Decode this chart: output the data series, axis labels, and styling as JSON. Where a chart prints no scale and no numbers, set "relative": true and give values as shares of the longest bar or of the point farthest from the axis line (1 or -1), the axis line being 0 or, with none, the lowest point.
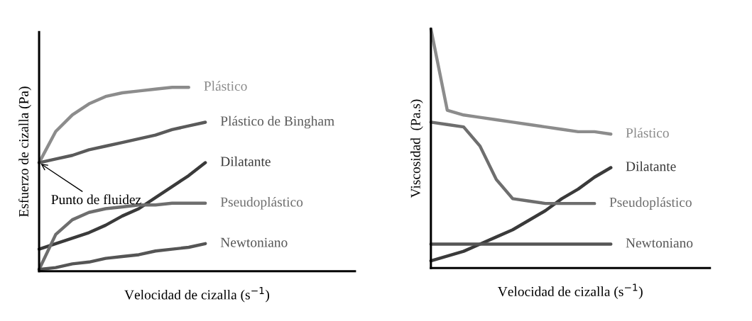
{
  "chart_data": [
    {
      "type": "line",
      "relative": true,
      "ylabel": "Esfuerzo de cizalla (Pa)",
      "xlabel": "Velocidad de cizalla (s$^{−1}$)",
      "marker": "none",
      "line_style": "solid",
      "categories": [
        null,
        null,
        null,
        null,
        null,
        null,
        null,
        null,
        null,
        null,
        null
      ],
      "annotations": [
        "Punto de fluidez"
      ],
      "series": [
        {
          "name": "Plástico",
          "color": "#8c8c8c",
          "values": [
            0.59,
            0.76,
            0.85,
            0.91,
            0.95,
            0.97,
            0.98,
            0.99,
            1.0,
            1.0,
            null
          ]
        },
        {
          "name": "Plástico de Bingham",
          "color": "#5a5a5a",
          "values": [
            0.59,
            0.61,
            0.63,
            0.66,
            0.68,
            0.7,
            0.72,
            0.74,
            0.77,
            0.79,
            0.81
          ]
        },
        {
          "name": "Dilatante",
          "color": "#3a3a3a",
          "values": [
            0.12,
            0.15,
            0.18,
            0.21,
            0.25,
            0.3,
            0.34,
            0.4,
            0.46,
            0.52,
            0.59
          ]
        },
        {
          "name": "Pseudoplástico",
          "color": "#6e6e6e",
          "values": [
            0.01,
            0.2,
            0.28,
            0.32,
            0.34,
            0.35,
            0.36,
            0.36,
            0.37,
            0.37,
            0.37
          ]
        },
        {
          "name": "Newtoniano",
          "color": "#555555",
          "values": [
            0.01,
            0.02,
            0.04,
            0.05,
            0.07,
            0.08,
            0.09,
            0.11,
            0.12,
            0.13,
            0.15
          ]
        }
      ]
    },
    {
      "type": "line",
      "relative": true,
      "ylabel": "Viscosidad  (Pa.s)",
      "xlabel": "Velocidad de cizalla (s$^{−1}$)",
      "marker": "none",
      "line_style": "solid",
      "categories": [
        null,
        null,
        null,
        null,
        null,
        null,
        null,
        null,
        null,
        null,
        null,
        null
      ],
      "series": [
        {
          "name": "Plástico",
          "color": "#8c8c8c",
          "values": [
            1.0,
            0.66,
            0.64,
            0.63,
            0.62,
            0.61,
            0.6,
            0.59,
            0.58,
            0.57,
            0.57,
            0.56
          ]
        },
        {
          "name": "Dilatante",
          "color": "#3a3a3a",
          "values": [
            0.03,
            0.05,
            0.07,
            0.1,
            0.13,
            0.16,
            0.2,
            0.24,
            0.29,
            0.33,
            0.38,
            0.42
          ]
        },
        {
          "name": "Pseudoplástico",
          "color": "#6e6e6e",
          "values": [
            0.61,
            0.6,
            0.59,
            0.51,
            0.37,
            0.29,
            0.28,
            0.27,
            0.27,
            0.27,
            0.27,
            null
          ]
        },
        {
          "name": "Newtoniano",
          "color": "#555555",
          "values": [
            0.1,
            0.1,
            0.1,
            0.1,
            0.1,
            0.1,
            0.1,
            0.1,
            0.1,
            0.1,
            0.1,
            0.1
          ]
        }
      ]
    }
  ]
}
